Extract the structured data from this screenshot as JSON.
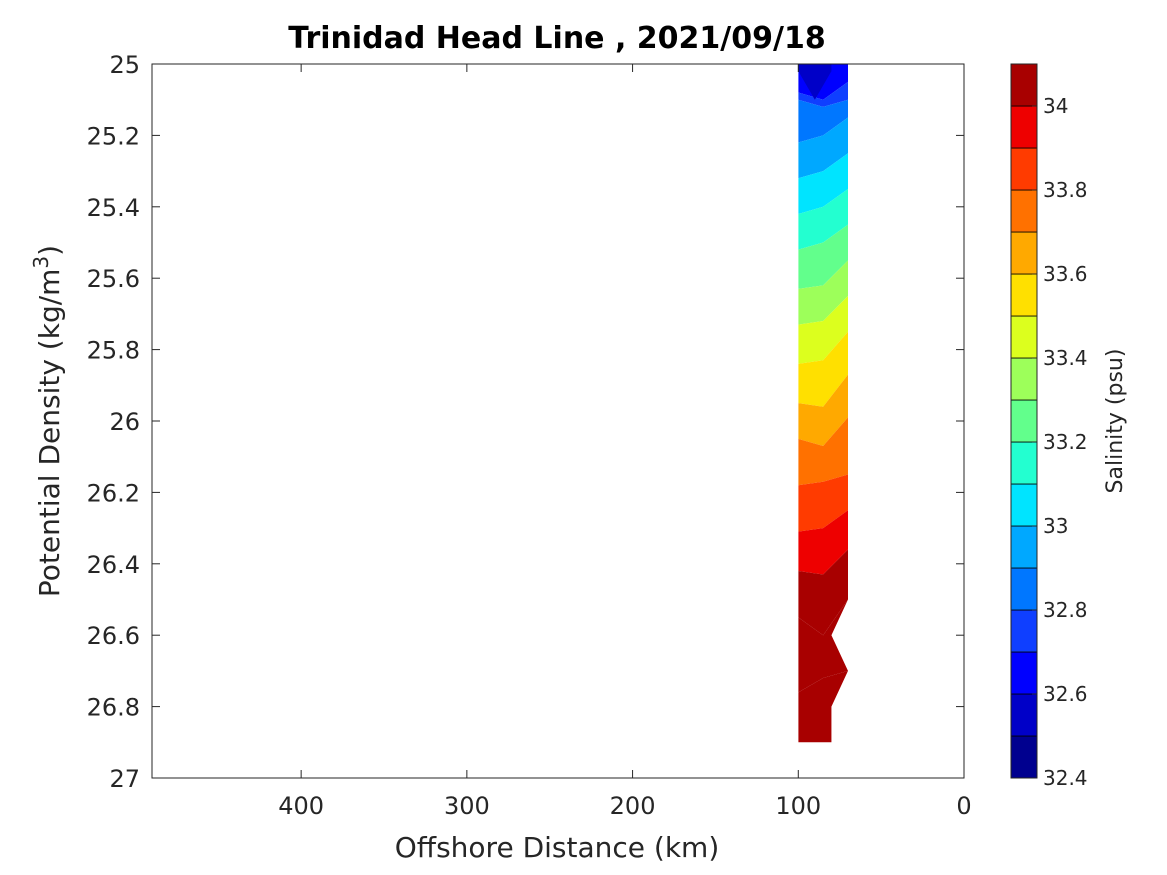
{
  "chart_data": {
    "type": "heatmap",
    "subtype": "filled-contour",
    "title": "Trinidad Head Line , 2021/09/18",
    "xlabel": "Offshore Distance (km)",
    "ylabel": "Potential Density (kg/m³)",
    "ylabel_base": "Potential Density (kg/m",
    "ylabel_sup": "3",
    "ylabel_tail": ")",
    "colorbar_label": "Salinity (psu)",
    "x_reversed": true,
    "y_reversed": true,
    "xlim": [
      490,
      0
    ],
    "ylim": [
      25,
      27
    ],
    "xticks": [
      400,
      300,
      200,
      100,
      0
    ],
    "yticks": [
      25,
      25.2,
      25.4,
      25.6,
      25.8,
      26,
      26.2,
      26.4,
      26.6,
      26.8,
      27
    ],
    "ytick_labels": [
      "25",
      "25.2",
      "25.4",
      "25.6",
      "25.8",
      "26",
      "26.2",
      "26.4",
      "26.6",
      "26.8",
      "27"
    ],
    "colorbar": {
      "range": [
        32.4,
        34.1
      ],
      "ticks": [
        32.4,
        32.6,
        32.8,
        33,
        33.2,
        33.4,
        33.6,
        33.8,
        34
      ],
      "tick_labels": [
        "32.4",
        "32.6",
        "32.8",
        "33",
        "33.2",
        "33.4",
        "33.6",
        "33.8",
        "34"
      ],
      "levels": [
        32.4,
        32.5,
        32.6,
        32.7,
        32.8,
        32.9,
        33.0,
        33.1,
        33.2,
        33.3,
        33.4,
        33.5,
        33.6,
        33.7,
        33.8,
        33.9,
        34.0,
        34.1
      ],
      "colors": [
        "#00008f",
        "#0000c8",
        "#0000ff",
        "#0f3fff",
        "#0077ff",
        "#00a8ff",
        "#00e4ff",
        "#23ffd0",
        "#62ff8c",
        "#9dff5a",
        "#dcff1e",
        "#ffe000",
        "#ffa900",
        "#ff7100",
        "#ff3b00",
        "#ee0000",
        "#a80000"
      ]
    },
    "contour": {
      "x_left": 100,
      "x_right": 70,
      "y_top": 25,
      "band_boundaries": [
        {
          "level": 32.6,
          "left": 25.08,
          "mid": 25.1,
          "right": 25.05
        },
        {
          "level": 32.7,
          "left": 25.1,
          "mid": 25.12,
          "right": 25.1
        },
        {
          "level": 32.8,
          "left": 25.22,
          "mid": 25.2,
          "right": 25.15
        },
        {
          "level": 32.9,
          "left": 25.32,
          "mid": 25.3,
          "right": 25.25
        },
        {
          "level": 33.0,
          "left": 25.42,
          "mid": 25.4,
          "right": 25.35
        },
        {
          "level": 33.1,
          "left": 25.52,
          "mid": 25.5,
          "right": 25.45
        },
        {
          "level": 33.2,
          "left": 25.63,
          "mid": 25.62,
          "right": 25.55
        },
        {
          "level": 33.3,
          "left": 25.73,
          "mid": 25.72,
          "right": 25.65
        },
        {
          "level": 33.4,
          "left": 25.84,
          "mid": 25.83,
          "right": 25.75
        },
        {
          "level": 33.5,
          "left": 25.95,
          "mid": 25.96,
          "right": 25.87
        },
        {
          "level": 33.6,
          "left": 26.05,
          "mid": 26.07,
          "right": 25.99
        },
        {
          "level": 33.7,
          "left": 26.18,
          "mid": 26.17,
          "right": 26.15
        },
        {
          "level": 33.8,
          "left": 26.31,
          "mid": 26.3,
          "right": 26.25
        },
        {
          "level": 33.9,
          "left": 26.42,
          "mid": 26.43,
          "right": 26.36
        },
        {
          "level": 34.0,
          "left": 26.55,
          "mid": 26.6,
          "right": 26.5
        },
        {
          "level": 34.1,
          "left": 26.76,
          "mid": 26.72,
          "right": 26.7
        }
      ],
      "bottom": [
        {
          "x": 100,
          "y": 26.9
        },
        {
          "x": 80,
          "y": 26.9
        },
        {
          "x": 80,
          "y": 26.8
        },
        {
          "x": 70,
          "y": 26.7
        },
        {
          "x": 80,
          "y": 26.6
        },
        {
          "x": 70,
          "y": 26.5
        }
      ],
      "top_notch": {
        "level": 32.5,
        "points": [
          {
            "x": 100,
            "y": 25.0
          },
          {
            "x": 100,
            "y": 25.02
          },
          {
            "x": 90,
            "y": 25.1
          },
          {
            "x": 80,
            "y": 25.02
          },
          {
            "x": 80,
            "y": 25.0
          }
        ]
      }
    }
  }
}
